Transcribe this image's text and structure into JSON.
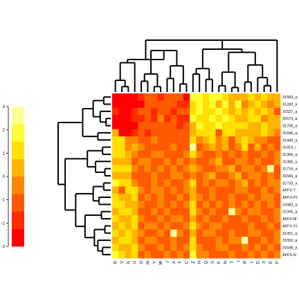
{
  "chart_data": {
    "type": "heatmap",
    "title": "",
    "xlabel": "",
    "ylabel": "",
    "columns": [
      "R",
      "V",
      "G",
      "U",
      "O",
      "M",
      "Y",
      "W",
      "J",
      "A",
      "F",
      "C",
      "Z",
      "H",
      "Q",
      "S",
      "K",
      "N",
      "T",
      "I",
      "B",
      "L",
      "D",
      "X",
      "E",
      "P"
    ],
    "rows": [
      "31583_a",
      "31330_a",
      "31527_a",
      "31573_a",
      "31708_a",
      "31596_a",
      "31440_a",
      "31419_r",
      "31356_a",
      "31386_a",
      "31724_a",
      "31566_a",
      "31733_a",
      "AFFX-T",
      "AFFX-PI",
      "31683_a",
      "31345_a",
      "AFFX-M",
      "AFFX-YI",
      "31351_a",
      "31552_a",
      "31648_a",
      "AFFX-N"
    ],
    "color_scale": {
      "min": -3,
      "max": 3,
      "ticks": [
        "3",
        "2",
        "1",
        "0",
        "-1",
        "-2",
        "-3"
      ],
      "bins": [
        "#ff0000",
        "#ff2c00",
        "#ff5a00",
        "#ff8600",
        "#ffb400",
        "#ffe000",
        "#ffff33",
        "#ffff99"
      ]
    },
    "row_dendrogram": "present (left)",
    "column_dendrogram": "present (top)",
    "values": [
      [
        -2.8,
        -2.9,
        -2.6,
        -2.8,
        -1.6,
        -1.2,
        -1.5,
        -1.7,
        -0.9,
        -1.5,
        -1.3,
        -2.6,
        1.8,
        1.5,
        1.2,
        1.9,
        1.6,
        0.9,
        0.5,
        0.4,
        0.6,
        0.8,
        0.6,
        0.8,
        0.4,
        0.4
      ],
      [
        -2.6,
        -2.4,
        -2.8,
        -2.9,
        -2.4,
        -1.4,
        -1.1,
        -1.3,
        -1.4,
        -1.0,
        -1.6,
        -1.9,
        0.9,
        1.5,
        1.3,
        1.6,
        0.4,
        1.5,
        0.6,
        1.8,
        -0.6,
        0.6,
        0.8,
        0.5,
        -0.4,
        0.6
      ],
      [
        -2.2,
        -2.7,
        -2.5,
        -1.6,
        -1.4,
        -1.1,
        -2.2,
        -1.5,
        -0.8,
        -1.6,
        -1.1,
        -1.2,
        1.2,
        1.7,
        1.4,
        1.3,
        1.8,
        1.0,
        0.4,
        1.0,
        0.5,
        0.8,
        0.3,
        0.9,
        0.6,
        -1.1
      ],
      [
        -2.4,
        -2.6,
        -2.7,
        -2.1,
        -1.7,
        -1.3,
        -1.6,
        -0.6,
        -1.7,
        -1.4,
        -1.6,
        -1.9,
        1.5,
        1.4,
        1.1,
        1.9,
        1.2,
        1.6,
        1.3,
        0.6,
        0.4,
        0.9,
        0.8,
        -0.4,
        0.7,
        0.5
      ],
      [
        -2.8,
        -2.5,
        -2.9,
        -2.6,
        -1.4,
        -0.9,
        -1.2,
        -1.4,
        -1.0,
        -1.5,
        -2.1,
        -1.3,
        0.3,
        1.6,
        1.2,
        1.0,
        1.5,
        1.4,
        1.2,
        1.0,
        0.8,
        0.6,
        0.4,
        0.8,
        0.6,
        0.5
      ],
      [
        0.4,
        -2.6,
        -2.4,
        -2.2,
        -1.3,
        -1.6,
        -1.0,
        -1.4,
        -0.9,
        -1.3,
        -1.1,
        -1.2,
        0.6,
        1.2,
        1.4,
        1.1,
        -0.9,
        1.3,
        1.2,
        0.7,
        0.6,
        0.3,
        0.5,
        0.9,
        0.6,
        -0.5
      ],
      [
        1.4,
        0.8,
        -0.6,
        -0.5,
        -1.3,
        -1.0,
        -0.6,
        -0.8,
        -0.9,
        -1.2,
        -1.0,
        -1.5,
        0.8,
        -0.7,
        0.5,
        1.0,
        -0.6,
        0.4,
        -0.9,
        0.6,
        1.2,
        0.2,
        -0.5,
        -0.6,
        -1.2,
        -1.0
      ],
      [
        0.8,
        1.2,
        -0.4,
        0.6,
        -0.6,
        -1.1,
        -0.9,
        -1.4,
        -1.0,
        -0.7,
        -1.2,
        -1.0,
        2.6,
        -1.1,
        -0.6,
        0.3,
        -0.7,
        0.5,
        -1.2,
        -0.6,
        1.4,
        -0.8,
        0.5,
        -1.5,
        -0.7,
        -1.0
      ],
      [
        1.3,
        0.9,
        0.5,
        -0.6,
        -0.8,
        -1.2,
        -0.6,
        -0.5,
        -1.1,
        -1.3,
        -0.9,
        -0.4,
        1.0,
        -0.5,
        -0.8,
        -1.1,
        -0.6,
        -1.4,
        -0.4,
        -1.0,
        -0.5,
        -0.9,
        -1.3,
        -0.6,
        -0.8,
        -0.4
      ],
      [
        0.2,
        0.6,
        0.4,
        -0.8,
        -0.5,
        -0.4,
        -0.9,
        -1.1,
        -0.6,
        -0.8,
        -0.5,
        -0.9,
        -0.4,
        -1.2,
        -0.9,
        -0.6,
        0.3,
        -1.1,
        -0.8,
        -0.5,
        -0.7,
        -1.0,
        -0.6,
        -1.3,
        -0.9,
        -0.6
      ],
      [
        0.9,
        1.4,
        1.1,
        -0.5,
        -0.9,
        -0.7,
        -1.5,
        -0.5,
        -1.0,
        -0.6,
        -0.9,
        -0.4,
        0.4,
        -0.6,
        -1.3,
        -0.9,
        -0.5,
        -0.4,
        0.3,
        -0.9,
        -0.6,
        -0.4,
        -0.8,
        -0.5,
        2.6,
        -1.1
      ],
      [
        0.6,
        0.3,
        0.7,
        -0.9,
        -1.3,
        -0.8,
        -0.6,
        -1.0,
        -1.4,
        -0.7,
        -0.5,
        -0.9,
        -0.6,
        -0.9,
        -0.5,
        0.4,
        -1.2,
        -0.8,
        -0.6,
        0.3,
        -0.9,
        -0.5,
        -0.7,
        -1.1,
        -0.6,
        -0.8
      ],
      [
        1.5,
        0.8,
        1.2,
        -0.4,
        -0.8,
        -1.2,
        -0.5,
        -0.9,
        -0.7,
        -1.3,
        -1.0,
        -0.6,
        1.1,
        -0.8,
        -0.5,
        -1.0,
        -0.4,
        -0.7,
        -1.0,
        -0.6,
        0.5,
        -0.8,
        -0.5,
        -0.9,
        -0.7,
        -0.4
      ],
      [
        0.4,
        -0.8,
        0.9,
        1.2,
        -0.6,
        -0.9,
        -0.4,
        -0.7,
        -0.9,
        -0.5,
        -0.8,
        -0.6,
        0.2,
        -1.2,
        -0.8,
        -0.5,
        -1.4,
        -0.9,
        -1.1,
        -0.7,
        -0.5,
        -1.0,
        -0.8,
        -0.6,
        -0.9,
        -0.5
      ],
      [
        1.1,
        0.5,
        0.2,
        0.8,
        -1.3,
        -0.6,
        -1.1,
        -0.4,
        -0.8,
        -1.0,
        -0.6,
        -1.4,
        0.6,
        -0.5,
        -1.0,
        -0.7,
        -1.2,
        -1.5,
        -0.6,
        -1.3,
        -0.8,
        -0.5,
        -1.0,
        -0.7,
        -0.6,
        -0.9
      ],
      [
        0.8,
        1.3,
        0.4,
        0.7,
        -0.5,
        -0.9,
        -1.2,
        -0.6,
        -1.0,
        -0.5,
        -0.9,
        -0.7,
        1.4,
        -1.0,
        -0.6,
        -1.2,
        -0.7,
        -0.9,
        -0.5,
        -1.1,
        -0.7,
        -0.9,
        -0.6,
        -1.0,
        -0.5,
        -0.8
      ],
      [
        0.3,
        0.9,
        1.0,
        0.5,
        -0.8,
        -1.5,
        -0.6,
        -1.2,
        -0.5,
        -0.9,
        -1.3,
        -0.8,
        0.8,
        -0.7,
        -1.1,
        -0.5,
        -0.9,
        -1.2,
        3.0,
        -0.6,
        -1.1,
        -0.7,
        -0.5,
        -1.3,
        -0.8,
        -0.6
      ],
      [
        1.2,
        0.4,
        0.6,
        1.3,
        -0.6,
        -0.8,
        -1.0,
        -0.5,
        -1.2,
        -0.7,
        -0.6,
        -1.0,
        0.5,
        -0.9,
        -0.6,
        -1.0,
        -1.5,
        -0.7,
        -1.1,
        -0.8,
        -0.6,
        -1.2,
        -0.9,
        -0.5,
        -1.0,
        -0.7
      ],
      [
        0.6,
        1.1,
        0.3,
        0.9,
        -0.9,
        -0.5,
        -0.7,
        -1.0,
        -0.6,
        -1.1,
        -0.8,
        -0.5,
        1.2,
        -0.6,
        -0.9,
        -0.7,
        -0.5,
        -1.0,
        -0.8,
        -1.2,
        -0.9,
        -0.6,
        -1.1,
        -0.8,
        -0.6,
        -1.0
      ],
      [
        1.4,
        0.7,
        0.9,
        0.4,
        -0.5,
        -1.2,
        -0.9,
        -0.6,
        -1.0,
        2.4,
        -0.5,
        -0.9,
        0.7,
        -1.1,
        -0.7,
        -0.5,
        -1.0,
        -0.8,
        -0.6,
        -0.9,
        -1.2,
        -0.7,
        -0.5,
        -1.0,
        -0.8,
        -0.6
      ],
      [
        0.5,
        1.0,
        1.3,
        0.6,
        -1.0,
        -0.7,
        -0.5,
        -1.1,
        -0.8,
        -0.6,
        -0.9,
        -1.2,
        0.9,
        -0.8,
        -1.2,
        -0.9,
        -0.6,
        -1.1,
        -0.7,
        -0.5,
        2.8,
        -0.9,
        -1.2,
        -0.6,
        -0.9,
        -0.7
      ],
      [
        0.9,
        0.6,
        0.5,
        1.1,
        -0.7,
        -0.9,
        -1.3,
        -0.5,
        -0.9,
        -0.7,
        -1.1,
        -0.6,
        1.3,
        -0.5,
        -0.8,
        -1.1,
        -0.7,
        -0.6,
        -1.0,
        -0.8,
        -0.5,
        -1.1,
        -0.7,
        -0.9,
        -0.6,
        -1.2
      ],
      [
        1.6,
        1.2,
        0.7,
        0.8,
        -1.1,
        -0.6,
        -0.8,
        -1.0,
        -0.5,
        -1.2,
        -0.7,
        -0.8,
        1.5,
        -0.7,
        -0.6,
        -0.8,
        -1.1,
        -0.9,
        -0.5,
        -1.0,
        -0.8,
        -0.6,
        -0.9,
        -0.7,
        -1.0,
        -0.5
      ]
    ]
  }
}
